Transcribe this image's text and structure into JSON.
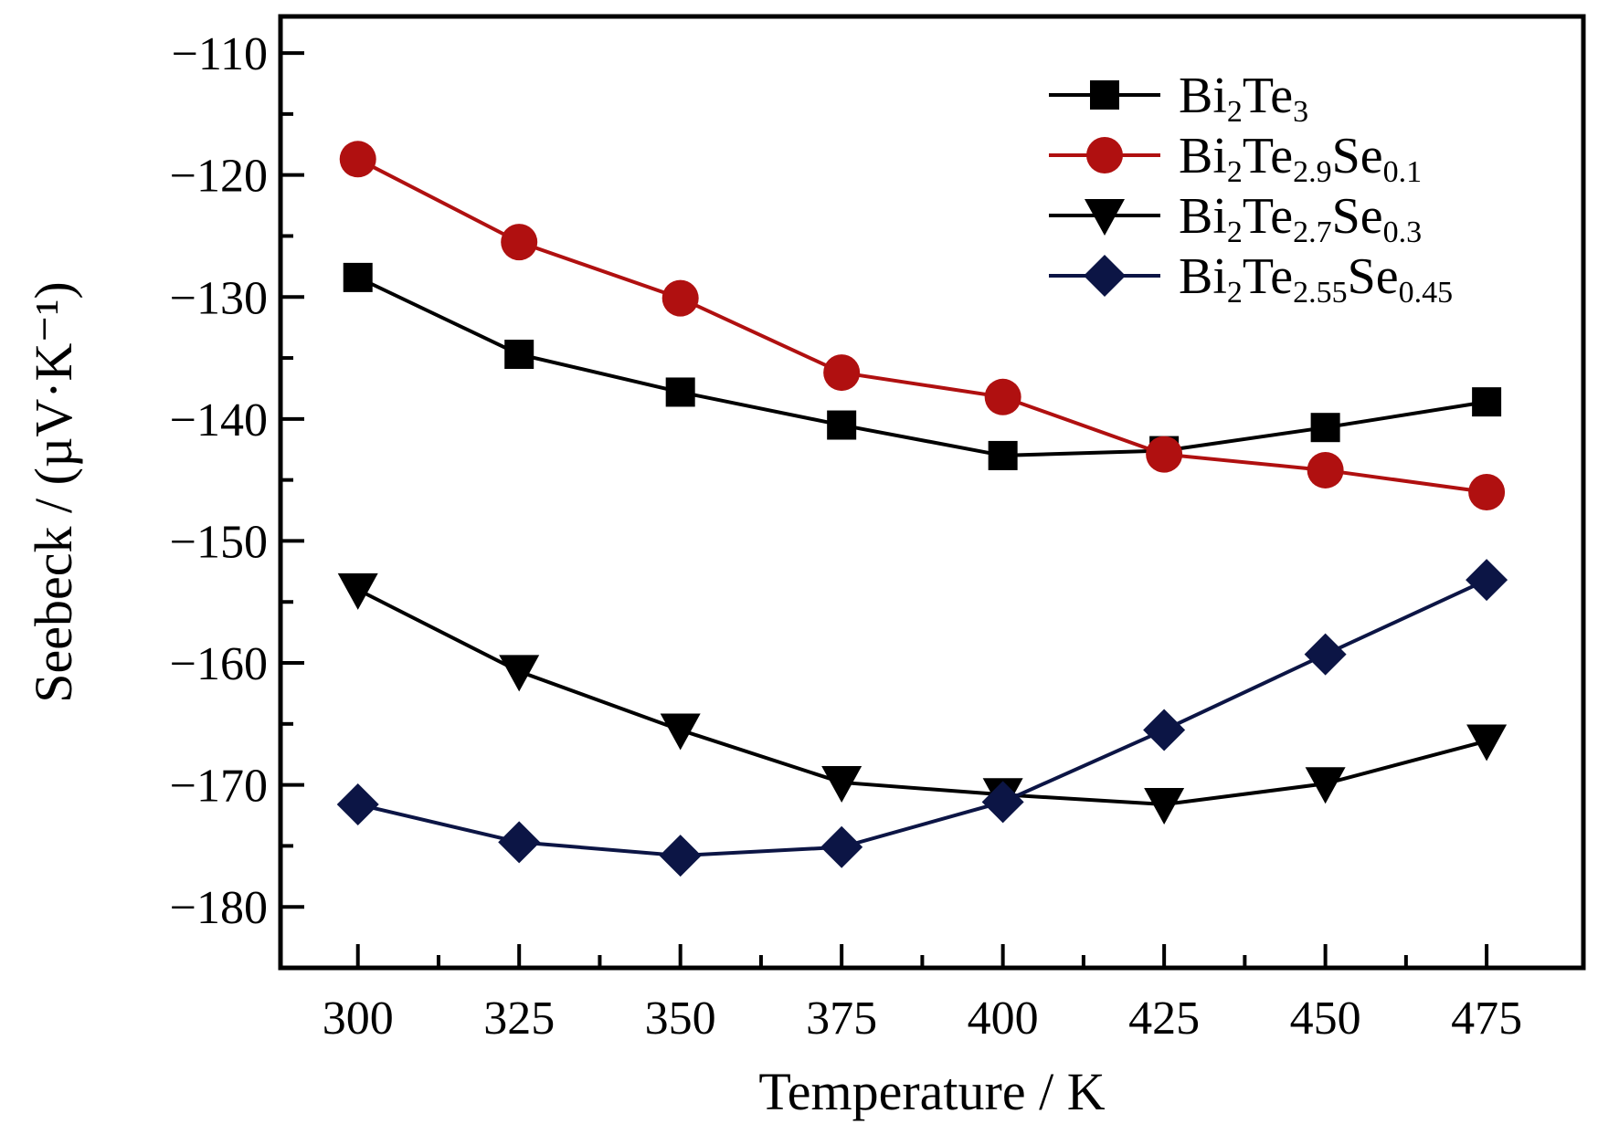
{
  "chart_data": {
    "type": "line",
    "xlabel": "Temperature / K",
    "ylabel": "Seebeck / (µV·K⁻¹)",
    "xlim": [
      288,
      490
    ],
    "ylim": [
      -185,
      -107
    ],
    "x_ticks": [
      300,
      325,
      350,
      375,
      400,
      425,
      450,
      475
    ],
    "x_tick_labels": [
      "300",
      "325",
      "350",
      "375",
      "400",
      "425",
      "450",
      "475"
    ],
    "y_ticks": [
      -110,
      -120,
      -130,
      -140,
      -150,
      -160,
      -170,
      -180
    ],
    "y_tick_labels": [
      "−110",
      "−120",
      "−130",
      "−140",
      "−150",
      "−160",
      "−170",
      "−180"
    ],
    "grid": false,
    "legend_position": "top-right",
    "x": [
      300,
      325,
      350,
      375,
      400,
      425,
      450,
      475
    ],
    "series": [
      {
        "name": "Bi2Te3",
        "name_parts": [
          [
            "Bi",
            ""
          ],
          [
            "2",
            "sub"
          ],
          [
            "Te",
            ""
          ],
          [
            "3",
            "sub"
          ]
        ],
        "color": "#000000",
        "marker": "square",
        "values": [
          -128.4,
          -134.7,
          -137.8,
          -140.5,
          -143.0,
          -142.6,
          -140.7,
          -138.6
        ]
      },
      {
        "name": "Bi2Te2.9Se0.1",
        "name_parts": [
          [
            "Bi",
            ""
          ],
          [
            "2",
            "sub"
          ],
          [
            "Te",
            ""
          ],
          [
            "2.9",
            "sub"
          ],
          [
            "Se",
            ""
          ],
          [
            "0.1",
            "sub"
          ]
        ],
        "color": "#b01010",
        "marker": "circle",
        "values": [
          -118.7,
          -125.5,
          -130.1,
          -136.2,
          -138.2,
          -142.9,
          -144.2,
          -146.0
        ]
      },
      {
        "name": "Bi2Te2.7Se0.3",
        "name_parts": [
          [
            "Bi",
            ""
          ],
          [
            "2",
            "sub"
          ],
          [
            "Te",
            ""
          ],
          [
            "2.7",
            "sub"
          ],
          [
            "Se",
            ""
          ],
          [
            "0.3",
            "sub"
          ]
        ],
        "color": "#000000",
        "marker": "triangle-down",
        "values": [
          -154.0,
          -160.7,
          -165.5,
          -169.8,
          -170.8,
          -171.6,
          -169.9,
          -166.4
        ]
      },
      {
        "name": "Bi2Te2.55Se0.45",
        "name_parts": [
          [
            "Bi",
            ""
          ],
          [
            "2",
            "sub"
          ],
          [
            "Te",
            ""
          ],
          [
            "2.55",
            "sub"
          ],
          [
            "Se",
            ""
          ],
          [
            "0.45",
            "sub"
          ]
        ],
        "color": "#0c1545",
        "marker": "diamond",
        "values": [
          -171.6,
          -174.7,
          -175.8,
          -175.1,
          -171.4,
          -165.5,
          -159.3,
          -153.2
        ]
      }
    ]
  }
}
